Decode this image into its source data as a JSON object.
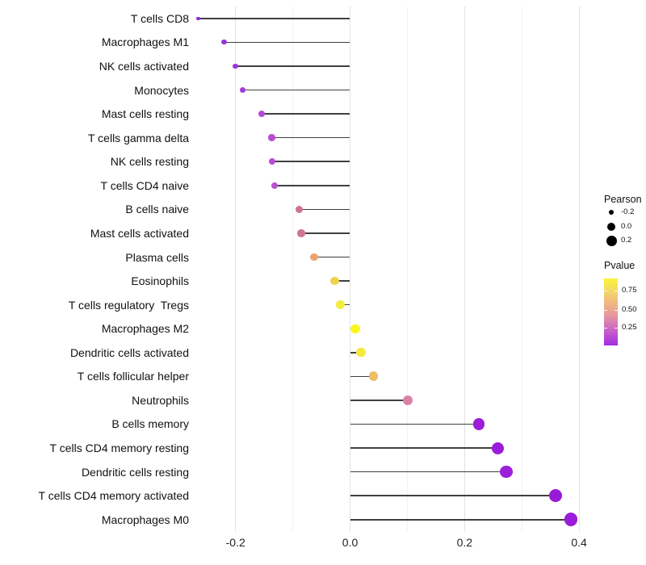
{
  "chart_data": {
    "type": "lollipop",
    "title": "",
    "xlabel": "",
    "ylabel": "",
    "orientation": "horizontal",
    "x_axis": {
      "major_ticks": [
        -0.2,
        0.0,
        0.2,
        0.4
      ],
      "major_tick_labels": [
        "-0.2",
        "0.0",
        "0.2",
        "0.4"
      ],
      "minor_ticks": [
        -0.1,
        0.1,
        0.3
      ],
      "range": [
        -0.26,
        0.48
      ]
    },
    "grid": "vertical-only",
    "legend_position": "right",
    "rows": [
      {
        "label": "T cells CD8",
        "pearson": -0.265,
        "dot_color": "#8b2bd9"
      },
      {
        "label": "Macrophages M1",
        "pearson": -0.22,
        "dot_color": "#9833da"
      },
      {
        "label": "NK cells activated",
        "pearson": -0.2,
        "dot_color": "#9d37d8"
      },
      {
        "label": "Monocytes",
        "pearson": -0.188,
        "dot_color": "#a33dd6"
      },
      {
        "label": "Mast cells resting",
        "pearson": -0.155,
        "dot_color": "#b44bd2"
      },
      {
        "label": "T cells gamma delta",
        "pearson": -0.137,
        "dot_color": "#b84ed1"
      },
      {
        "label": "NK cells resting",
        "pearson": -0.136,
        "dot_color": "#b84ed1"
      },
      {
        "label": "T cells CD4 naive",
        "pearson": -0.132,
        "dot_color": "#bb51d0"
      },
      {
        "label": "B cells naive",
        "pearson": -0.089,
        "dot_color": "#ce7490"
      },
      {
        "label": "Mast cells activated",
        "pearson": -0.085,
        "dot_color": "#cf7590"
      },
      {
        "label": "Plasma cells",
        "pearson": -0.063,
        "dot_color": "#eda26e"
      },
      {
        "label": "Eosinophils",
        "pearson": -0.027,
        "dot_color": "#edd34f"
      },
      {
        "label": "T cells regulatory  Tregs",
        "pearson": -0.017,
        "dot_color": "#f4ec3f"
      },
      {
        "label": "Macrophages M2",
        "pearson": 0.009,
        "dot_color": "#fbf51f"
      },
      {
        "label": "Dendritic cells activated",
        "pearson": 0.019,
        "dot_color": "#f7e93b"
      },
      {
        "label": "T cells follicular helper",
        "pearson": 0.041,
        "dot_color": "#edbe62"
      },
      {
        "label": "Neutrophils",
        "pearson": 0.101,
        "dot_color": "#d980a5"
      },
      {
        "label": "B cells memory",
        "pearson": 0.225,
        "dot_color": "#9c1ed9"
      },
      {
        "label": "T cells CD4 memory resting",
        "pearson": 0.258,
        "dot_color": "#9b1dd9"
      },
      {
        "label": "Dendritic cells resting",
        "pearson": 0.273,
        "dot_color": "#9d1fda"
      },
      {
        "label": "T cells CD4 memory activated",
        "pearson": 0.359,
        "dot_color": "#991bd8"
      },
      {
        "label": "Macrophages M0",
        "pearson": 0.386,
        "dot_color": "#9b1dda"
      }
    ]
  },
  "legend": {
    "size": {
      "title": "Pearson",
      "entries": [
        {
          "label": "-0.2"
        },
        {
          "label": "0.0"
        },
        {
          "label": "0.2"
        }
      ],
      "dot_color": "#000000"
    },
    "color": {
      "title": "Pvalue",
      "tick_labels": [
        "0.75",
        "0.50",
        "0.25"
      ],
      "gradient_top_color": "#fbf538",
      "gradient_middle_color": "#e292a4",
      "gradient_bottom_color": "#a42be1"
    }
  },
  "style": {
    "background_color": "#ffffff",
    "stick_color": "#404040",
    "major_grid_color": "#e3e3e3",
    "minor_grid_color": "#f2f2f2",
    "axis_text_color": "#111111"
  }
}
